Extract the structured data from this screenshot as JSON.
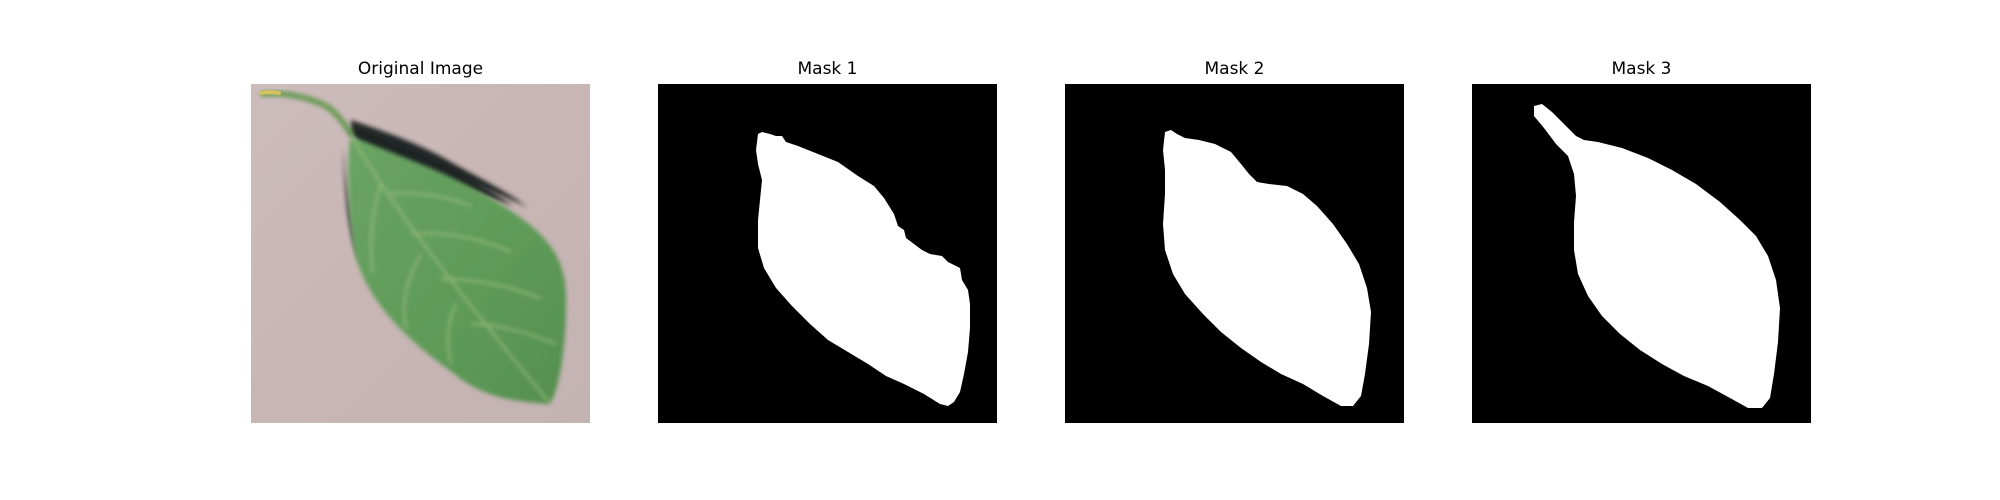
{
  "figure": {
    "panels": [
      {
        "title": "Original Image",
        "kind": "photo"
      },
      {
        "title": "Mask 1",
        "kind": "mask"
      },
      {
        "title": "Mask 2",
        "kind": "mask"
      },
      {
        "title": "Mask 3",
        "kind": "mask"
      }
    ],
    "colors": {
      "background": "#ffffff",
      "mask_background": "#000000",
      "mask_foreground": "#ffffff",
      "photo_background": "#c9b8b8",
      "leaf_fill": "#5f9a58",
      "leaf_vein": "#9fbd7f",
      "shadow": "#1e2322"
    }
  }
}
